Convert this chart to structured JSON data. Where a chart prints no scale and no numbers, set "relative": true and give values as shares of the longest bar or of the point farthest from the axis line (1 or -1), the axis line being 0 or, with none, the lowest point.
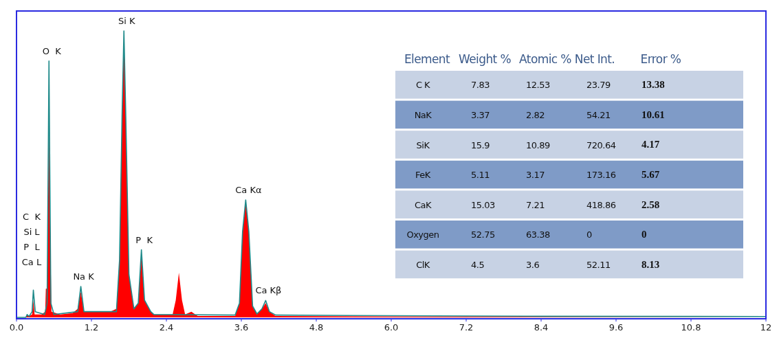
{
  "chart_data": [
    {
      "type": "area",
      "relative": true,
      "xlim": [
        0,
        12
      ],
      "xticks": [
        {
          "value": 0,
          "label": "0.0"
        },
        1.2,
        2.4,
        3.6,
        4.8,
        {
          "value": 6,
          "label": "6.0"
        },
        7.2,
        8.4,
        9.6,
        10.8,
        12
      ],
      "series": [
        {
          "color": "#ff0000",
          "x": [
            0,
            0.15,
            0.17,
            0.2,
            0.25,
            0.27,
            0.29,
            0.4,
            0.46,
            0.47,
            0.49,
            0.5,
            0.52,
            0.54,
            0.56,
            0.7,
            0.9,
            0.98,
            1.03,
            1.08,
            1.3,
            1.5,
            1.6,
            1.65,
            1.69,
            1.72,
            1.75,
            1.8,
            1.88,
            1.95,
            2.0,
            2.05,
            2.15,
            2.2,
            2.5,
            2.55,
            2.6,
            2.65,
            2.7,
            2.8,
            2.9,
            3.5,
            3.57,
            3.62,
            3.67,
            3.72,
            3.78,
            3.85,
            3.93,
            3.99,
            4.05,
            4.15,
            6,
            12
          ],
          "values": [
            0,
            0,
            0.01,
            0.005,
            0.01,
            0.06,
            0.01,
            0.01,
            0.02,
            0.1,
            0.1,
            0.3,
            0.66,
            0.3,
            0.02,
            0.01,
            0.015,
            0.03,
            0.09,
            0.02,
            0.02,
            0.02,
            0.03,
            0.2,
            0.7,
            0.99,
            0.7,
            0.15,
            0.03,
            0.05,
            0.22,
            0.06,
            0.02,
            0.01,
            0.01,
            0.06,
            0.156,
            0.06,
            0.01,
            0.02,
            0.005,
            0.005,
            0.05,
            0.3,
            0.4,
            0.3,
            0.04,
            0.01,
            0.03,
            0.05,
            0.02,
            0.005,
            0.003,
            0
          ]
        },
        {
          "type": "line",
          "color": "#1f8a8a",
          "x": [
            0,
            0.15,
            0.17,
            0.2,
            0.25,
            0.27,
            0.3,
            0.45,
            0.49,
            0.51,
            0.52,
            0.53,
            0.55,
            0.6,
            0.98,
            1.03,
            1.08,
            1.6,
            1.65,
            1.69,
            1.72,
            1.75,
            1.8,
            1.88,
            1.95,
            2.0,
            2.05,
            2.15,
            2.2,
            3.5,
            3.57,
            3.62,
            3.67,
            3.72,
            3.78,
            3.85,
            3.93,
            3.99,
            4.05,
            4.15,
            6,
            8.4,
            12
          ],
          "values": [
            0,
            0,
            0.01,
            0.003,
            0.02,
            0.095,
            0.02,
            0.01,
            0.05,
            0.6,
            0.895,
            0.6,
            0.05,
            0.01,
            0.02,
            0.108,
            0.02,
            0.02,
            0.2,
            0.7,
            1.0,
            0.7,
            0.15,
            0.03,
            0.05,
            0.236,
            0.06,
            0.02,
            0.01,
            0.008,
            0.05,
            0.3,
            0.41,
            0.3,
            0.04,
            0.012,
            0.03,
            0.059,
            0.02,
            0.008,
            0.006,
            0.004,
            0.003
          ]
        }
      ],
      "annotations": [
        {
          "text": "Si K",
          "x": 1.72,
          "y": 1.0
        },
        {
          "text": "O  K",
          "x": 0.52,
          "y": 0.895
        },
        "C  K",
        "Si L",
        "P  L",
        "Ca L",
        {
          "text": "Na K",
          "x": 1.03,
          "y": 0.108
        },
        {
          "text": "P  K",
          "x": 2.0,
          "y": 0.236
        },
        {
          "text": "Ca Kα",
          "x": 3.67,
          "y": 0.41
        },
        {
          "text": "Ca Kβ",
          "x": 3.99,
          "y": 0.059
        }
      ]
    },
    {
      "type": "other",
      "categories": [
        "Element",
        "Weight %",
        "Atomic %",
        "Net Int.",
        "Error %"
      ],
      "annotations": [
        "C K",
        "7.83",
        "12.53",
        "23.79",
        "13.38",
        "NaK",
        "3.37",
        "2.82",
        "54.21",
        "10.61",
        "SiK",
        "15.9",
        "10.89",
        "720.64",
        "4.17",
        "FeK",
        "5.11",
        "3.17",
        "173.16",
        "5.67",
        "CaK",
        "15.03",
        "7.21",
        "418.86",
        "2.58",
        "Oxygen",
        "52.75",
        "63.38",
        "0",
        "0",
        "ClK",
        "4.5",
        "3.6",
        "52.11",
        "8.13"
      ]
    }
  ]
}
